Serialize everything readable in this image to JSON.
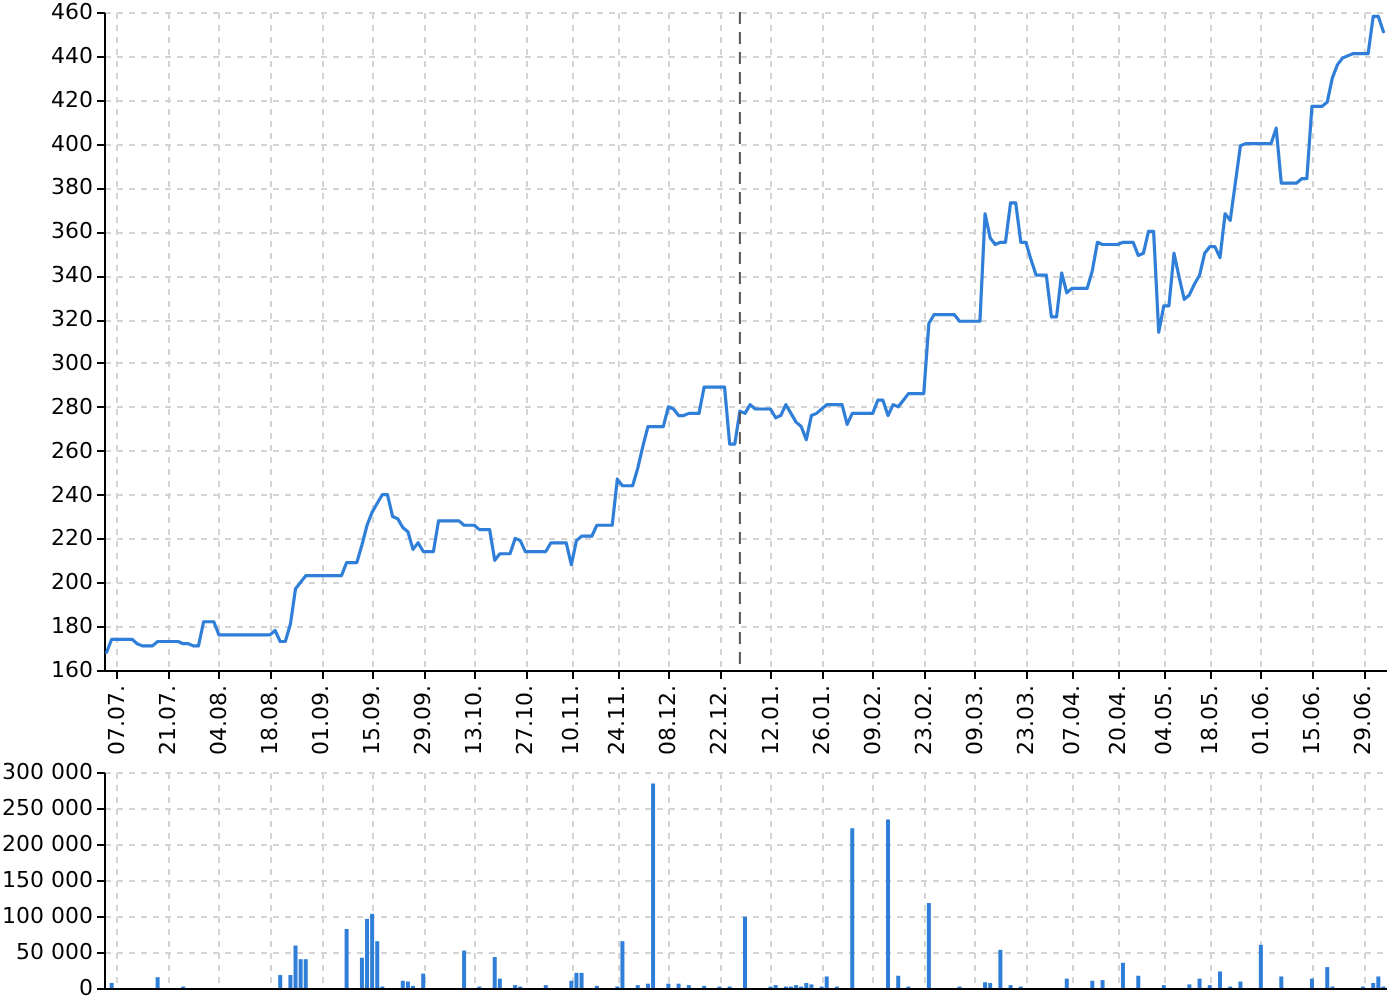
{
  "chart_data": [
    {
      "type": "line",
      "color": "#2f7ed8",
      "categories": [
        null,
        null,
        "07.07.",
        null,
        null,
        null,
        null,
        null,
        null,
        null,
        null,
        null,
        "21.07.",
        null,
        null,
        null,
        null,
        null,
        null,
        null,
        null,
        null,
        "04.08.",
        null,
        null,
        null,
        null,
        null,
        null,
        null,
        null,
        null,
        "18.08.",
        null,
        null,
        null,
        null,
        null,
        null,
        null,
        null,
        null,
        "01.09.",
        null,
        null,
        null,
        null,
        null,
        null,
        null,
        null,
        null,
        "15.09.",
        null,
        null,
        null,
        null,
        null,
        null,
        null,
        null,
        null,
        "29.09.",
        null,
        null,
        null,
        null,
        null,
        null,
        null,
        null,
        null,
        "13.10.",
        null,
        null,
        null,
        null,
        null,
        null,
        null,
        null,
        null,
        "27.10.",
        null,
        null,
        null,
        null,
        null,
        null,
        null,
        null,
        "10.11.",
        null,
        null,
        null,
        null,
        null,
        null,
        null,
        null,
        "24.11.",
        null,
        null,
        null,
        null,
        null,
        null,
        null,
        null,
        null,
        "08.12.",
        null,
        null,
        null,
        null,
        null,
        null,
        null,
        null,
        null,
        "22.12.",
        null,
        null,
        null,
        null,
        null,
        null,
        null,
        null,
        null,
        "12.01.",
        null,
        null,
        null,
        null,
        null,
        null,
        null,
        null,
        null,
        "26.01.",
        null,
        null,
        null,
        null,
        null,
        null,
        null,
        null,
        null,
        "09.02.",
        null,
        null,
        null,
        null,
        null,
        null,
        null,
        null,
        null,
        "23.02.",
        null,
        null,
        null,
        null,
        null,
        null,
        null,
        null,
        null,
        "09.03.",
        null,
        null,
        null,
        null,
        null,
        null,
        null,
        null,
        null,
        "23.03.",
        null,
        null,
        null,
        null,
        null,
        null,
        null,
        null,
        "07.04.",
        null,
        null,
        null,
        null,
        null,
        null,
        null,
        null,
        "20.04.",
        null,
        null,
        null,
        null,
        null,
        null,
        null,
        null,
        "04.05.",
        null,
        null,
        null,
        null,
        null,
        null,
        null,
        null,
        "18.05.",
        null,
        null,
        null,
        null,
        null,
        null,
        null,
        null,
        null,
        "01.06.",
        null,
        null,
        null,
        null,
        null,
        null,
        null,
        null,
        null,
        "15.06.",
        null,
        null,
        null,
        null,
        null,
        null,
        null,
        null,
        null,
        "29.06.",
        null,
        null,
        null,
        null
      ],
      "values": [
        168,
        174,
        174,
        174,
        174,
        174,
        172,
        171,
        171,
        171,
        173,
        173,
        173,
        173,
        173,
        172,
        172,
        171,
        171,
        182,
        182,
        182,
        176,
        176,
        176,
        176,
        176,
        176,
        176,
        176,
        176,
        176,
        176,
        178,
        173,
        173,
        181,
        197,
        200,
        203,
        203,
        203,
        203,
        203,
        203,
        203,
        203,
        209,
        209,
        209,
        217,
        226,
        232,
        236,
        240,
        240,
        230,
        229,
        225,
        223,
        215,
        218,
        214,
        214,
        214,
        228,
        228,
        228,
        228,
        228,
        226,
        226,
        226,
        224,
        224,
        224,
        210,
        213,
        213,
        213,
        220,
        219,
        214,
        214,
        214,
        214,
        214,
        218,
        218,
        218,
        218,
        208,
        219,
        221,
        221,
        221,
        226,
        226,
        226,
        226,
        247,
        244,
        244,
        244,
        252,
        262,
        271,
        271,
        271,
        271,
        280,
        279,
        276,
        276,
        277,
        277,
        277,
        289,
        289,
        289,
        289,
        289,
        263,
        263,
        278,
        277,
        281,
        279,
        279,
        279,
        279,
        275,
        276,
        281,
        277,
        273,
        271,
        265,
        276,
        277,
        279,
        281,
        281,
        281,
        281,
        272,
        277,
        277,
        277,
        277,
        277,
        283,
        283,
        276,
        281,
        280,
        283,
        286,
        286,
        286,
        286,
        318,
        322,
        322,
        322,
        322,
        322,
        319,
        319,
        319,
        319,
        319,
        368,
        357,
        354,
        355,
        355,
        373,
        373,
        355,
        355,
        347,
        340,
        340,
        340,
        321,
        321,
        341,
        332,
        334,
        334,
        334,
        334,
        342,
        355,
        354,
        354,
        354,
        354,
        355,
        355,
        355,
        349,
        350,
        360,
        360,
        314,
        326,
        326,
        350,
        339,
        329,
        331,
        336,
        340,
        350,
        353,
        353,
        348,
        368,
        365,
        382,
        399,
        400,
        400,
        400,
        400,
        400,
        400,
        407,
        382,
        382,
        382,
        382,
        384,
        384,
        417,
        417,
        417,
        419,
        430,
        436,
        439,
        440,
        441,
        441,
        441,
        441,
        458,
        458,
        451
      ],
      "ylim": [
        160,
        460
      ],
      "yticks": [
        160,
        180,
        200,
        220,
        240,
        260,
        280,
        300,
        320,
        340,
        360,
        380,
        400,
        420,
        440,
        460
      ],
      "grid": true
    },
    {
      "type": "bar",
      "color": "#2f7ed8",
      "categories": [
        null,
        null,
        "07.07.",
        null,
        null,
        null,
        null,
        null,
        null,
        null,
        null,
        null,
        "21.07.",
        null,
        null,
        null,
        null,
        null,
        null,
        null,
        null,
        null,
        "04.08.",
        null,
        null,
        null,
        null,
        null,
        null,
        null,
        null,
        null,
        "18.08.",
        null,
        null,
        null,
        null,
        null,
        null,
        null,
        null,
        null,
        "01.09.",
        null,
        null,
        null,
        null,
        null,
        null,
        null,
        null,
        null,
        "15.09.",
        null,
        null,
        null,
        null,
        null,
        null,
        null,
        null,
        null,
        "29.09.",
        null,
        null,
        null,
        null,
        null,
        null,
        null,
        null,
        null,
        "13.10.",
        null,
        null,
        null,
        null,
        null,
        null,
        null,
        null,
        null,
        "27.10.",
        null,
        null,
        null,
        null,
        null,
        null,
        null,
        null,
        "10.11.",
        null,
        null,
        null,
        null,
        null,
        null,
        null,
        null,
        "24.11.",
        null,
        null,
        null,
        null,
        null,
        null,
        null,
        null,
        null,
        "08.12.",
        null,
        null,
        null,
        null,
        null,
        null,
        null,
        null,
        null,
        "22.12.",
        null,
        null,
        null,
        null,
        null,
        null,
        null,
        null,
        null,
        "12.01.",
        null,
        null,
        null,
        null,
        null,
        null,
        null,
        null,
        null,
        "26.01.",
        null,
        null,
        null,
        null,
        null,
        null,
        null,
        null,
        null,
        "09.02.",
        null,
        null,
        null,
        null,
        null,
        null,
        null,
        null,
        null,
        "23.02.",
        null,
        null,
        null,
        null,
        null,
        null,
        null,
        null,
        null,
        "09.03.",
        null,
        null,
        null,
        null,
        null,
        null,
        null,
        null,
        null,
        "23.03.",
        null,
        null,
        null,
        null,
        null,
        null,
        null,
        null,
        "07.04.",
        null,
        null,
        null,
        null,
        null,
        null,
        null,
        null,
        "20.04.",
        null,
        null,
        null,
        null,
        null,
        null,
        null,
        null,
        "04.05.",
        null,
        null,
        null,
        null,
        null,
        null,
        null,
        null,
        "18.05.",
        null,
        null,
        null,
        null,
        null,
        null,
        null,
        null,
        null,
        "01.06.",
        null,
        null,
        null,
        null,
        null,
        null,
        null,
        null,
        null,
        "15.06.",
        null,
        null,
        null,
        null,
        null,
        null,
        null,
        null,
        null,
        "29.06.",
        null,
        null,
        null,
        null
      ],
      "values": [
        null,
        7000,
        null,
        null,
        null,
        null,
        null,
        null,
        null,
        null,
        15000,
        null,
        null,
        null,
        null,
        2000,
        null,
        null,
        null,
        null,
        null,
        null,
        null,
        null,
        null,
        null,
        null,
        null,
        null,
        null,
        null,
        null,
        null,
        null,
        18000,
        null,
        18000,
        59000,
        40000,
        40000,
        null,
        null,
        null,
        null,
        null,
        null,
        null,
        82000,
        null,
        null,
        42000,
        96000,
        103000,
        65000,
        2000,
        null,
        null,
        null,
        10000,
        9000,
        3000,
        null,
        20000,
        null,
        null,
        null,
        null,
        null,
        null,
        null,
        52000,
        null,
        null,
        2000,
        null,
        null,
        43000,
        13000,
        null,
        null,
        4000,
        2000,
        null,
        null,
        null,
        null,
        4000,
        null,
        null,
        null,
        null,
        10000,
        21000,
        21000,
        null,
        null,
        3000,
        null,
        null,
        null,
        2000,
        65000,
        null,
        null,
        4000,
        null,
        6000,
        284000,
        null,
        null,
        6000,
        null,
        6000,
        null,
        4000,
        null,
        null,
        3000,
        null,
        null,
        2000,
        null,
        2000,
        null,
        null,
        99000,
        null,
        null,
        null,
        null,
        2000,
        4000,
        null,
        2000,
        2000,
        4000,
        2000,
        7000,
        5000,
        null,
        2000,
        16000,
        null,
        2000,
        null,
        null,
        222000,
        null,
        null,
        null,
        null,
        null,
        null,
        234000,
        null,
        17000,
        null,
        2000,
        null,
        null,
        null,
        118000,
        null,
        null,
        null,
        null,
        null,
        2000,
        null,
        null,
        null,
        null,
        8000,
        7000,
        null,
        53000,
        null,
        4000,
        null,
        2000,
        null,
        null,
        null,
        null,
        null,
        null,
        null,
        null,
        13000,
        null,
        null,
        null,
        null,
        10000,
        null,
        11000,
        null,
        null,
        null,
        35000,
        null,
        null,
        17000,
        null,
        null,
        null,
        null,
        4000,
        null,
        null,
        null,
        null,
        5000,
        null,
        13000,
        null,
        4000,
        null,
        23000,
        null,
        2000,
        null,
        9000,
        null,
        null,
        null,
        60000,
        null,
        null,
        null,
        16000,
        null,
        null,
        null,
        null,
        null,
        13000,
        null,
        null,
        29000,
        2000,
        null,
        null,
        null,
        null,
        null,
        2000,
        null,
        7000,
        16000,
        2000
      ],
      "ylim": [
        0,
        300000
      ],
      "yticks": [
        0,
        {
          "value": 50000,
          "label": "50 000"
        },
        {
          "value": 100000,
          "label": "100 000"
        },
        {
          "value": 150000,
          "label": "150 000"
        },
        {
          "value": 200000,
          "label": "200 000"
        },
        {
          "value": 250000,
          "label": "250 000"
        },
        {
          "value": 300000,
          "label": "300 000"
        }
      ],
      "grid": true,
      "tick_labels": "y"
    }
  ]
}
